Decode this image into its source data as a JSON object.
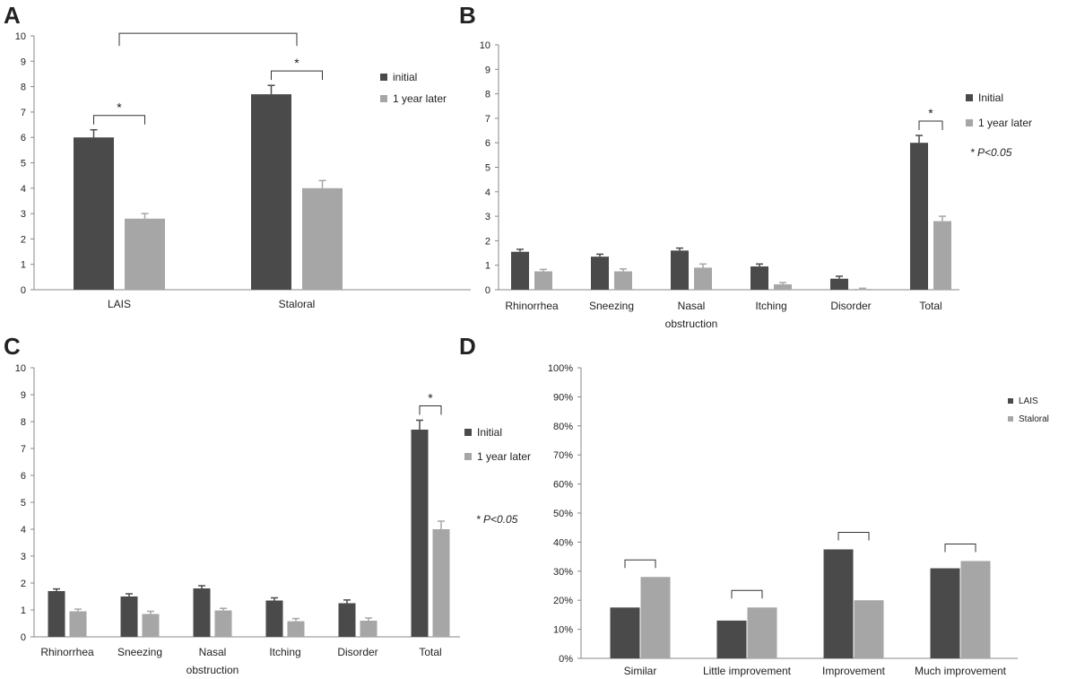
{
  "colors": {
    "initial": "#4a4a4a",
    "later": "#a6a6a6",
    "axis": "#888888",
    "bracket": "#333333"
  },
  "chart_data": [
    {
      "panel": "A",
      "type": "bar",
      "categories": [
        "LAIS",
        "Staloral"
      ],
      "ylim": [
        0,
        10
      ],
      "yticks": [
        "0",
        "1",
        "2",
        "3",
        "4",
        "5",
        "6",
        "7",
        "8",
        "9",
        "10"
      ],
      "series": [
        {
          "name": "initial",
          "values": [
            6.0,
            7.7
          ],
          "errors": [
            0.3,
            0.35
          ]
        },
        {
          "name": "1 year later",
          "values": [
            2.8,
            4.0
          ],
          "errors": [
            0.2,
            0.3
          ]
        }
      ],
      "significance": [
        {
          "label": "*",
          "type": "pair",
          "category": 0
        },
        {
          "label": "*",
          "type": "pair",
          "category": 1
        },
        {
          "label": "",
          "type": "between",
          "from": 0,
          "to": 1
        }
      ]
    },
    {
      "panel": "B",
      "type": "bar",
      "categories": [
        "Rhinorrhea",
        "Sneezing",
        "Nasal\nobstruction",
        "Itching",
        "Disorder",
        "Total"
      ],
      "ylim": [
        0,
        10
      ],
      "yticks": [
        "0",
        "1",
        "2",
        "3",
        "4",
        "5",
        "6",
        "7",
        "8",
        "9",
        "10"
      ],
      "series": [
        {
          "name": "Initial",
          "values": [
            1.55,
            1.35,
            1.6,
            0.95,
            0.45,
            6.0
          ],
          "errors": [
            0.1,
            0.1,
            0.1,
            0.1,
            0.1,
            0.3
          ]
        },
        {
          "name": "1 year later",
          "values": [
            0.75,
            0.75,
            0.9,
            0.22,
            0.03,
            2.8
          ],
          "errors": [
            0.08,
            0.1,
            0.15,
            0.07,
            0.03,
            0.2
          ]
        }
      ],
      "significance": [
        {
          "label": "*",
          "type": "pair",
          "category": 5
        }
      ],
      "note": "* P<0.05"
    },
    {
      "panel": "C",
      "type": "bar",
      "categories": [
        "Rhinorrhea",
        "Sneezing",
        "Nasal\nobstruction",
        "Itching",
        "Disorder",
        "Total"
      ],
      "ylim": [
        0,
        10
      ],
      "yticks": [
        "0",
        "1",
        "2",
        "3",
        "4",
        "5",
        "6",
        "7",
        "8",
        "9",
        "10"
      ],
      "series": [
        {
          "name": "Initial",
          "values": [
            1.7,
            1.5,
            1.8,
            1.35,
            1.25,
            7.7
          ],
          "errors": [
            0.08,
            0.1,
            0.1,
            0.1,
            0.12,
            0.35
          ]
        },
        {
          "name": "1 year later",
          "values": [
            0.95,
            0.85,
            0.98,
            0.58,
            0.6,
            4.0
          ],
          "errors": [
            0.08,
            0.1,
            0.08,
            0.1,
            0.1,
            0.3
          ]
        }
      ],
      "significance": [
        {
          "label": "*",
          "type": "pair",
          "category": 5
        }
      ],
      "note": "* P<0.05"
    },
    {
      "panel": "D",
      "type": "bar",
      "categories": [
        "Similar",
        "Little improvement",
        "Improvement",
        "Much improvement"
      ],
      "ylim": [
        0,
        100
      ],
      "yticks": [
        "0%",
        "10%",
        "20%",
        "30%",
        "40%",
        "50%",
        "60%",
        "70%",
        "80%",
        "90%",
        "100%"
      ],
      "series": [
        {
          "name": "LAIS",
          "values": [
            17.5,
            13,
            37.5,
            31
          ]
        },
        {
          "name": "Staloral",
          "values": [
            28,
            17.5,
            20,
            33.5
          ]
        }
      ],
      "significance": [
        {
          "label": "",
          "type": "pair",
          "category": 0
        },
        {
          "label": "",
          "type": "pair",
          "category": 1
        },
        {
          "label": "",
          "type": "pair",
          "category": 2
        },
        {
          "label": "",
          "type": "pair",
          "category": 3
        }
      ]
    }
  ]
}
